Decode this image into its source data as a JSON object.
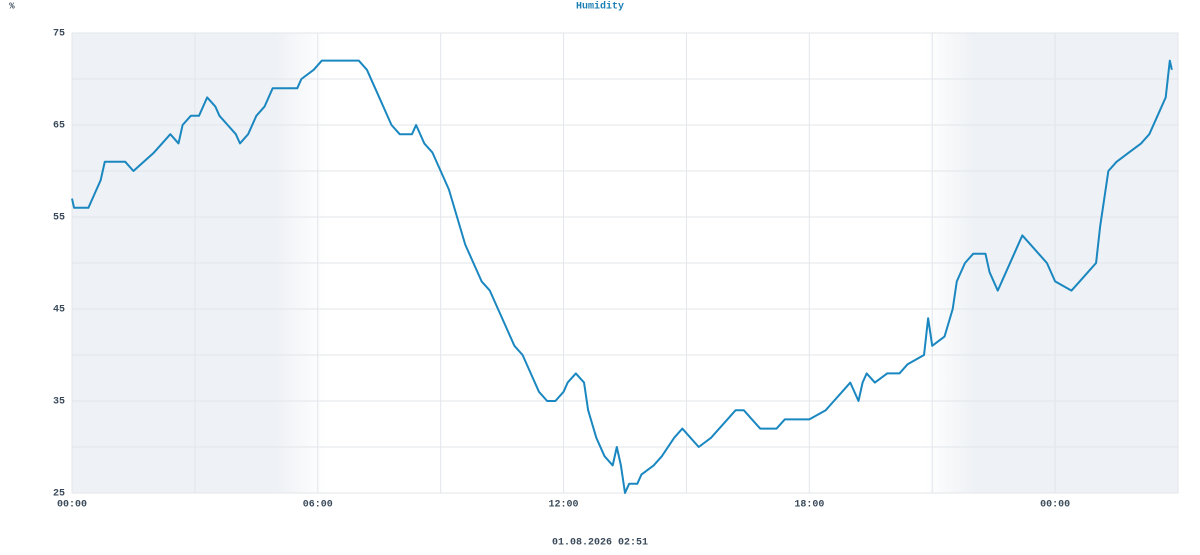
{
  "chart_data": {
    "type": "line",
    "title": "Humidity",
    "ylabel": "%",
    "xlabel": "01.08.2026 02:51",
    "x": [
      0,
      0.05,
      0.4,
      0.5,
      0.6,
      0.7,
      0.8,
      1.3,
      1.5,
      2.0,
      2.2,
      2.4,
      2.6,
      2.7,
      2.9,
      3.1,
      3.2,
      3.3,
      3.5,
      3.6,
      3.8,
      4.0,
      4.1,
      4.3,
      4.5,
      4.7,
      4.8,
      4.9,
      5.5,
      5.6,
      5.9,
      6.1,
      7.0,
      7.2,
      7.4,
      7.6,
      7.8,
      8.0,
      8.3,
      8.4,
      8.6,
      8.8,
      9.0,
      9.2,
      9.4,
      9.6,
      9.8,
      10.0,
      10.2,
      10.4,
      10.6,
      10.8,
      11.0,
      11.2,
      11.4,
      11.6,
      11.8,
      12.0,
      12.1,
      12.3,
      12.5,
      12.6,
      12.8,
      13.0,
      13.2,
      13.3,
      13.4,
      13.5,
      13.6,
      13.8,
      13.9,
      14.2,
      14.4,
      14.7,
      14.9,
      15.1,
      15.3,
      15.6,
      15.8,
      16.0,
      16.2,
      16.4,
      16.6,
      16.8,
      17.2,
      17.4,
      17.8,
      18.0,
      18.4,
      18.6,
      18.8,
      19.0,
      19.2,
      19.3,
      19.4,
      19.6,
      19.9,
      20.2,
      20.4,
      20.8,
      20.9,
      21.0,
      21.3,
      21.5,
      21.6,
      21.8,
      22.0,
      22.3,
      22.4,
      22.6,
      22.8,
      23.0,
      23.2,
      23.4,
      23.6,
      23.8,
      24.0,
      24.4,
      24.6,
      24.8,
      25.0,
      25.1,
      25.2,
      25.3,
      25.5,
      25.8,
      26.1,
      26.3,
      26.5,
      26.7,
      26.75,
      26.8,
      26.85
    ],
    "series": [
      {
        "name": "Humidity",
        "color": "#1a87c0",
        "values": [
          57,
          56,
          56,
          57,
          58,
          59,
          61,
          61,
          60,
          62,
          63,
          64,
          63,
          65,
          66,
          66,
          67,
          68,
          67,
          66,
          65,
          64,
          63,
          64,
          66,
          67,
          68,
          69,
          69,
          70,
          71,
          72,
          72,
          71,
          69,
          67,
          65,
          64,
          64,
          65,
          63,
          62,
          60,
          58,
          55,
          52,
          50,
          48,
          47,
          45,
          43,
          41,
          40,
          38,
          36,
          35,
          35,
          36,
          37,
          38,
          37,
          34,
          31,
          29,
          28,
          30,
          28,
          25,
          26,
          26,
          27,
          28,
          29,
          31,
          32,
          31,
          30,
          31,
          32,
          33,
          34,
          34,
          33,
          32,
          32,
          33,
          33,
          33,
          34,
          35,
          36,
          37,
          35,
          37,
          38,
          37,
          38,
          38,
          39,
          40,
          44,
          41,
          42,
          45,
          48,
          50,
          51,
          51,
          49,
          47,
          49,
          51,
          53,
          52,
          51,
          50,
          48,
          47,
          48,
          49,
          50,
          54,
          57,
          60,
          61,
          62,
          63,
          64,
          66,
          68,
          70,
          72,
          71
        ]
      }
    ],
    "xlim": [
      0,
      27
    ],
    "ylim": [
      25,
      75
    ],
    "xticks": [
      {
        "value": 0,
        "label": "00:00"
      },
      {
        "value": 6,
        "label": "06:00"
      },
      {
        "value": 12,
        "label": "12:00"
      },
      {
        "value": 18,
        "label": "18:00"
      },
      {
        "value": 24,
        "label": "00:00"
      }
    ],
    "yticks": [
      25,
      35,
      45,
      55,
      65,
      75
    ],
    "xminor": [
      3,
      9,
      15,
      21
    ],
    "yminor": [
      30,
      40,
      50,
      60,
      70
    ],
    "shaded": [
      [
        0,
        6.2
      ],
      [
        20.8,
        27
      ]
    ],
    "grid": true
  }
}
